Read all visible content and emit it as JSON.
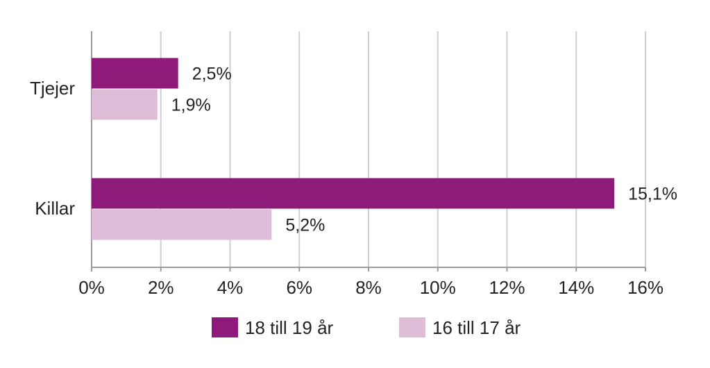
{
  "chart_data": {
    "type": "bar",
    "orientation": "horizontal",
    "categories": [
      "Tjejer",
      "Killar"
    ],
    "series": [
      {
        "name": "18 till 19 år",
        "values": [
          2.5,
          15.1
        ],
        "labels": [
          "2,5%",
          "15,1%"
        ],
        "color": "#8e1a7a"
      },
      {
        "name": "16 till 17 år",
        "values": [
          1.9,
          5.2
        ],
        "labels": [
          "1,9%",
          "5,2%"
        ],
        "color": "#ddbdd7"
      }
    ],
    "xlim": [
      0,
      16
    ],
    "xticks": [
      0,
      2,
      4,
      6,
      8,
      10,
      12,
      14,
      16
    ],
    "xtick_labels": [
      "0%",
      "2%",
      "4%",
      "6%",
      "8%",
      "10%",
      "12%",
      "14%",
      "16%"
    ],
    "title": "",
    "xlabel": "",
    "ylabel": "",
    "grid": "vertical",
    "legend": "bottom"
  },
  "colors": {
    "grid": "#cfcfcf",
    "axis": "#9a9a9a"
  }
}
